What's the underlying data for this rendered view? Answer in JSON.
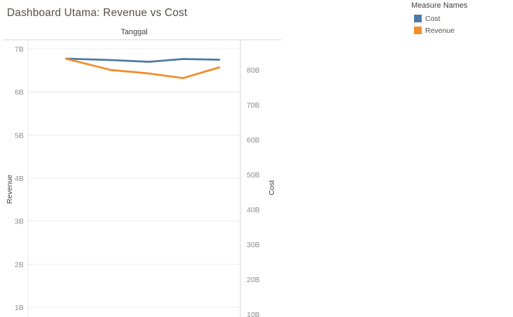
{
  "chart_data": {
    "type": "line",
    "title": "Dashboard Utama: Revenue vs Cost",
    "x_field_label": "Tanggal",
    "left_axis": {
      "label": "Revenue",
      "unit": "B",
      "range": [
        1,
        7
      ],
      "ticks": [
        "7B",
        "6B",
        "5B",
        "4B",
        "3B",
        "2B",
        "1B"
      ]
    },
    "right_axis": {
      "label": "Cost",
      "unit": "B",
      "range": [
        10,
        80
      ],
      "ticks": [
        "80B",
        "70B",
        "60B",
        "50B",
        "40B",
        "30B",
        "20B",
        "10B"
      ]
    },
    "legend": {
      "title": "Measure Names",
      "position": "top-right",
      "entries": [
        "Cost",
        "Revenue"
      ]
    },
    "grid": "horizontal",
    "series": [
      {
        "name": "Cost",
        "axis": "right",
        "color": "#4e79a7",
        "values": [
          83.2,
          82.8,
          82.3,
          83.1,
          82.9
        ]
      },
      {
        "name": "Revenue",
        "axis": "left",
        "color": "#f28e2b",
        "values": [
          6.77,
          6.51,
          6.43,
          6.32,
          6.57
        ]
      }
    ]
  }
}
